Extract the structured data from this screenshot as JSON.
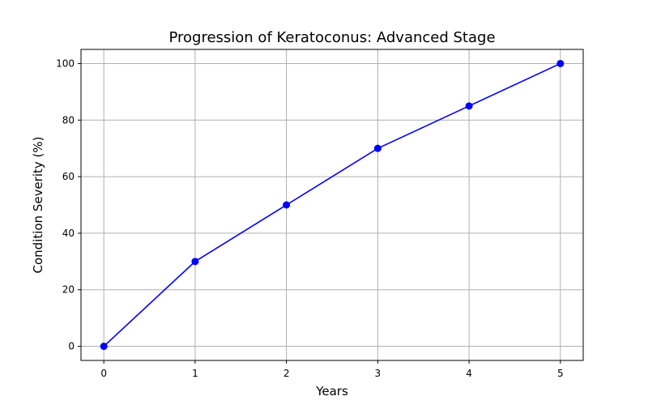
{
  "chart_data": {
    "type": "line",
    "title": "Progression of Keratoconus: Advanced Stage",
    "xlabel": "Years",
    "ylabel": "Condition Severity (%)",
    "x": [
      0,
      1,
      2,
      3,
      4,
      5
    ],
    "series": [
      {
        "values": [
          0,
          30,
          50,
          70,
          85,
          100
        ],
        "color": "#0000ff",
        "marker": "circle"
      }
    ],
    "xlim": [
      -0.25,
      5.25
    ],
    "ylim": [
      -5,
      105
    ],
    "xticks": [
      0,
      1,
      2,
      3,
      4,
      5
    ],
    "yticks": [
      0,
      20,
      40,
      60,
      80,
      100
    ],
    "grid": true
  }
}
